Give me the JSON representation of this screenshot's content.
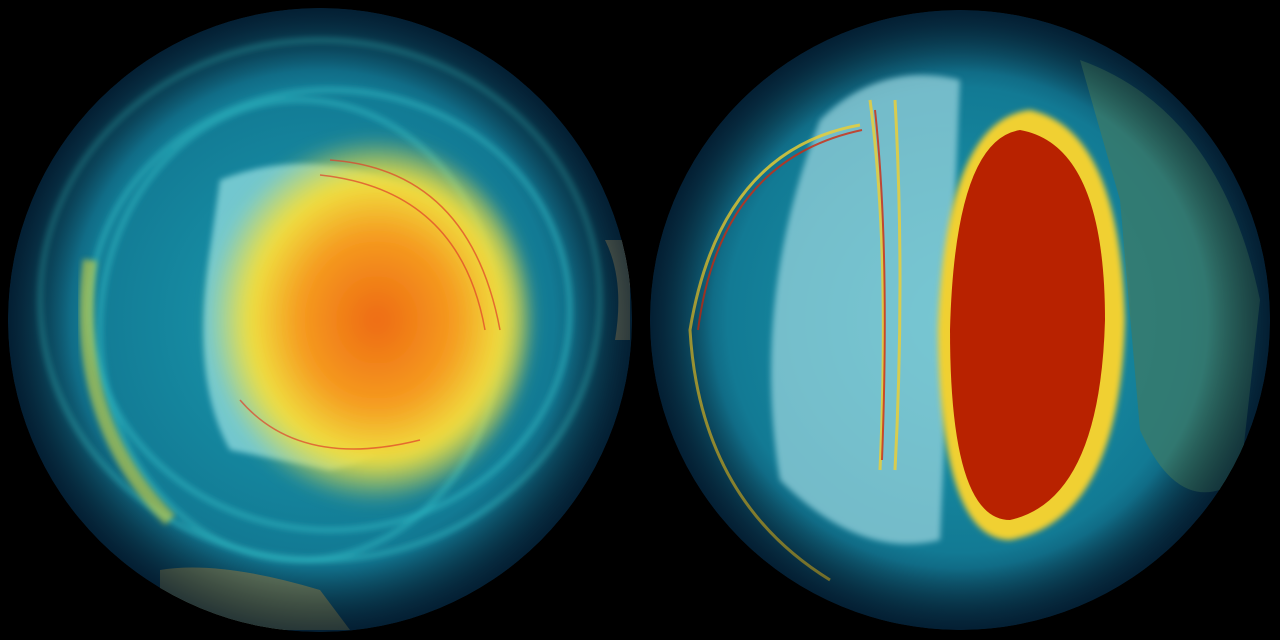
{
  "scene": {
    "background": "#000000",
    "globes": [
      {
        "name": "left-globe",
        "view": "south-polar",
        "palette": {
          "ocean": "#0d4f6e",
          "band": "#1fa5b8",
          "core": "#f07a18",
          "ring": "#f2e23a",
          "land": "#8ad8dc"
        }
      },
      {
        "name": "right-globe",
        "view": "north-polar",
        "palette": {
          "ocean": "#0d4f6e",
          "band": "#1fa5b8",
          "core": "#b82200",
          "ring": "#f2d030",
          "land": "#a9dfe6"
        }
      }
    ]
  }
}
